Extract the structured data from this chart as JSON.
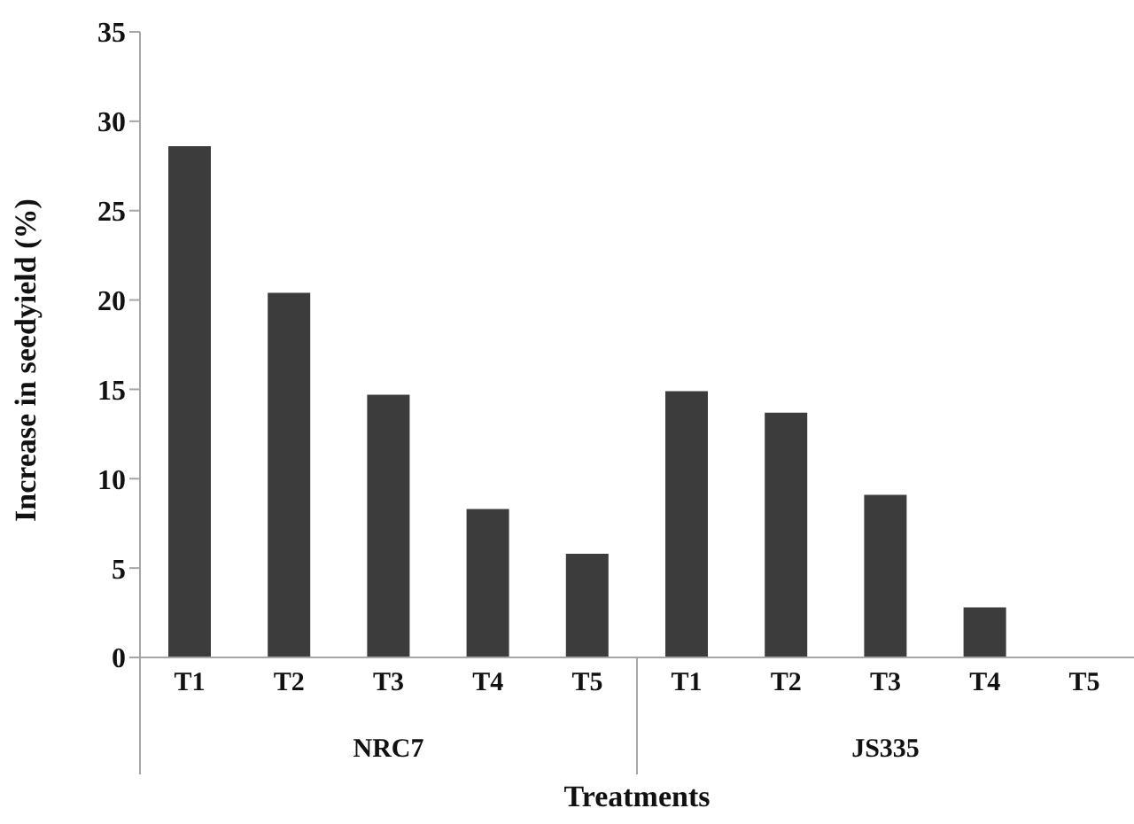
{
  "chart_data": {
    "type": "bar",
    "xlabel": "Treatments",
    "ylabel": "Increase in seedyield (%)",
    "categories": [
      "T1",
      "T2",
      "T3",
      "T4",
      "T5",
      "T1",
      "T2",
      "T3",
      "T4",
      "T5"
    ],
    "values": [
      28.6,
      20.4,
      14.7,
      8.3,
      5.8,
      14.9,
      13.7,
      9.1,
      2.8,
      0
    ],
    "color": "#3c3c3c",
    "ylim": [
      0,
      35
    ],
    "yticks": [
      0,
      5,
      10,
      15,
      20,
      25,
      30,
      35
    ],
    "annotations": [
      "NRC7",
      "JS335"
    ]
  }
}
